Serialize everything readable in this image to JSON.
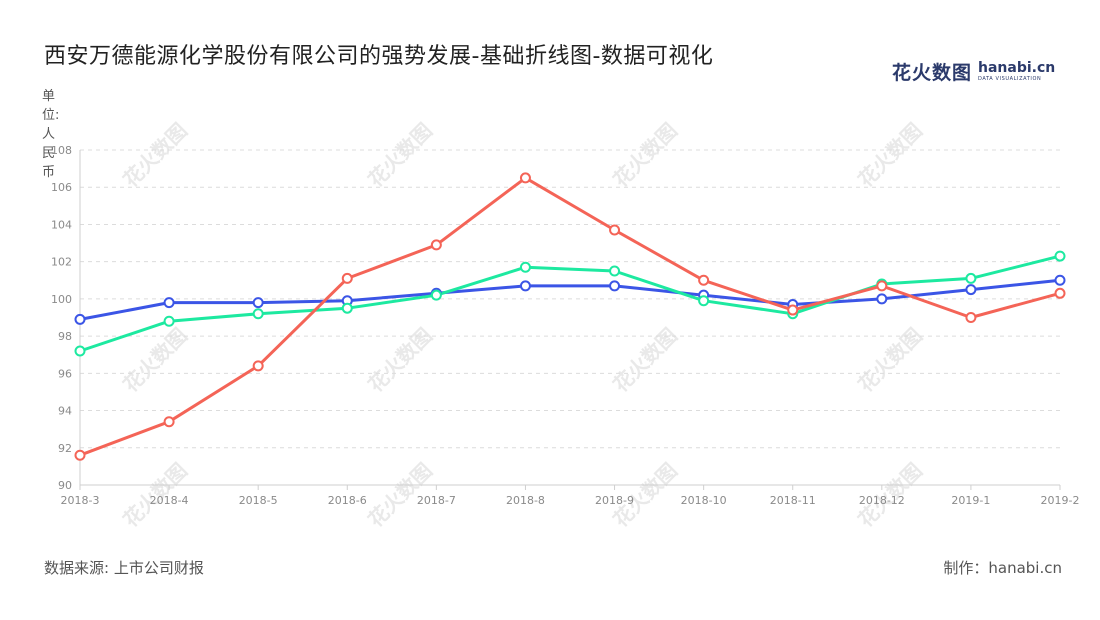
{
  "title": "西安万德能源化学股份有限公司的强势发展-基础折线图-数据可视化",
  "logo": {
    "cn": "花火数图",
    "en": "hanabi.cn",
    "en_sub": "DATA VISUALIZATION"
  },
  "y_unit": "单位:人民币",
  "source": "数据来源: 上市公司财报",
  "maker": "制作：hanabi.cn",
  "watermark": "花火数图",
  "chart_data": {
    "type": "line",
    "categories": [
      "2018-3",
      "2018-4",
      "2018-5",
      "2018-6",
      "2018-7",
      "2018-8",
      "2018-9",
      "2018-10",
      "2018-11",
      "2018-12",
      "2019-1",
      "2019-2"
    ],
    "ylim": [
      90,
      108
    ],
    "yticks": [
      90,
      92,
      94,
      96,
      98,
      100,
      102,
      104,
      106,
      108
    ],
    "ylabel": "单位:人民币",
    "grid": true,
    "series": [
      {
        "color": "#3b55e6",
        "values": [
          98.9,
          99.8,
          99.8,
          99.9,
          100.3,
          100.7,
          100.7,
          100.2,
          99.7,
          100.0,
          100.5,
          101.0
        ]
      },
      {
        "color": "#1de9a0",
        "values": [
          97.2,
          98.8,
          99.2,
          99.5,
          100.2,
          101.7,
          101.5,
          99.9,
          99.2,
          100.8,
          101.1,
          102.3
        ]
      },
      {
        "color": "#f46457",
        "values": [
          91.6,
          93.4,
          96.4,
          101.1,
          102.9,
          106.5,
          103.7,
          101.0,
          99.4,
          100.7,
          99.0,
          100.3
        ]
      }
    ]
  }
}
